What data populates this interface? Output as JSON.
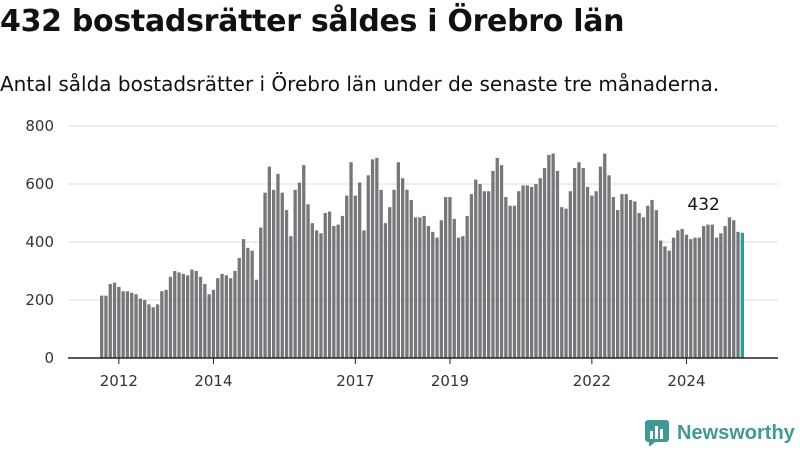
{
  "header": {
    "title": "432 bostadsrätter såldes i Örebro län",
    "subtitle": "Antal sålda bostadsrätter i Örebro län under de senaste tre månaderna."
  },
  "brand": {
    "name": "Newsworthy",
    "icon": "newsworthy-logo-icon",
    "color": "#3f9a94"
  },
  "chart_data": {
    "type": "bar",
    "title": "432 bostadsrätter såldes i Örebro län",
    "subtitle": "Antal sålda bostadsrätter i Örebro län under de senaste tre månaderna.",
    "ylim": [
      0,
      800
    ],
    "yticks": [
      0,
      200,
      400,
      600,
      800
    ],
    "xtick_labels": [
      "2012",
      "2014",
      "2017",
      "2019",
      "2022",
      "2024"
    ],
    "xtick_positions": [
      4,
      26,
      59,
      81,
      114,
      136
    ],
    "grid": true,
    "legend": "none",
    "colors": {
      "bar": "#76767b",
      "highlight": "#2a9d97",
      "grid": "#dddddd",
      "axis": "#222222"
    },
    "annotation": {
      "label": "432",
      "index": 140
    },
    "values": [
      215,
      215,
      255,
      260,
      245,
      230,
      230,
      225,
      220,
      205,
      200,
      185,
      175,
      185,
      230,
      235,
      280,
      300,
      295,
      290,
      285,
      305,
      300,
      280,
      255,
      220,
      235,
      275,
      290,
      285,
      275,
      300,
      345,
      410,
      380,
      370,
      270,
      450,
      570,
      660,
      580,
      635,
      570,
      510,
      420,
      580,
      605,
      665,
      530,
      465,
      440,
      430,
      500,
      505,
      455,
      460,
      490,
      560,
      675,
      560,
      605,
      440,
      630,
      685,
      690,
      580,
      465,
      520,
      580,
      675,
      620,
      580,
      545,
      485,
      485,
      490,
      455,
      435,
      415,
      475,
      555,
      555,
      480,
      415,
      420,
      490,
      565,
      615,
      600,
      575,
      575,
      645,
      690,
      665,
      555,
      525,
      525,
      575,
      595,
      595,
      590,
      600,
      620,
      655,
      700,
      705,
      645,
      520,
      515,
      575,
      655,
      675,
      655,
      590,
      560,
      575,
      660,
      705,
      630,
      555,
      510,
      565,
      565,
      545,
      540,
      500,
      485,
      525,
      545,
      510,
      405,
      385,
      370,
      415,
      440,
      445,
      425,
      410,
      415,
      415,
      455,
      460,
      460,
      415,
      430,
      455,
      485,
      475,
      435,
      432
    ]
  }
}
